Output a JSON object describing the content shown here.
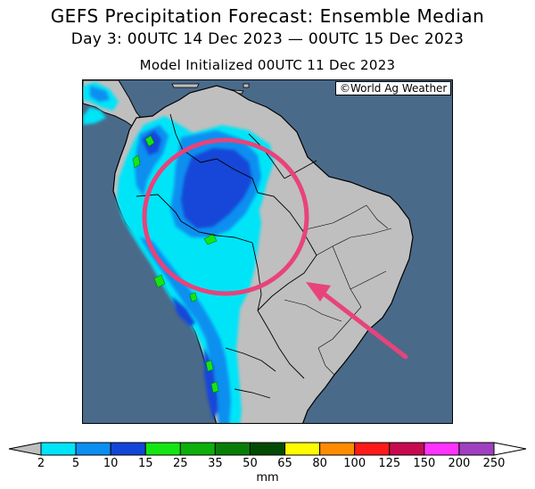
{
  "title": "GEFS Precipitation Forecast: Ensemble Median",
  "subtitle": "Day 3: 00UTC 14 Dec 2023 — 00UTC 15 Dec 2023",
  "init_line": "Model Initialized 00UTC 11 Dec 2023",
  "credit": "©World Ag Weather",
  "colorbar": {
    "unit": "mm",
    "ticks": [
      "2",
      "5",
      "10",
      "15",
      "25",
      "35",
      "50",
      "65",
      "80",
      "100",
      "125",
      "150",
      "200",
      "250"
    ],
    "colors": [
      "#00e4f8",
      "#0b8ff0",
      "#1246d8",
      "#14e614",
      "#0caf0c",
      "#087e08",
      "#034a03",
      "#fffb00",
      "#ff8c00",
      "#ff1a1a",
      "#c80a50",
      "#ff33ff",
      "#a040c0"
    ]
  },
  "colors": {
    "ocean": "#4a6a8a",
    "land": "#bfbfbf",
    "highlight": "#e8437a"
  }
}
